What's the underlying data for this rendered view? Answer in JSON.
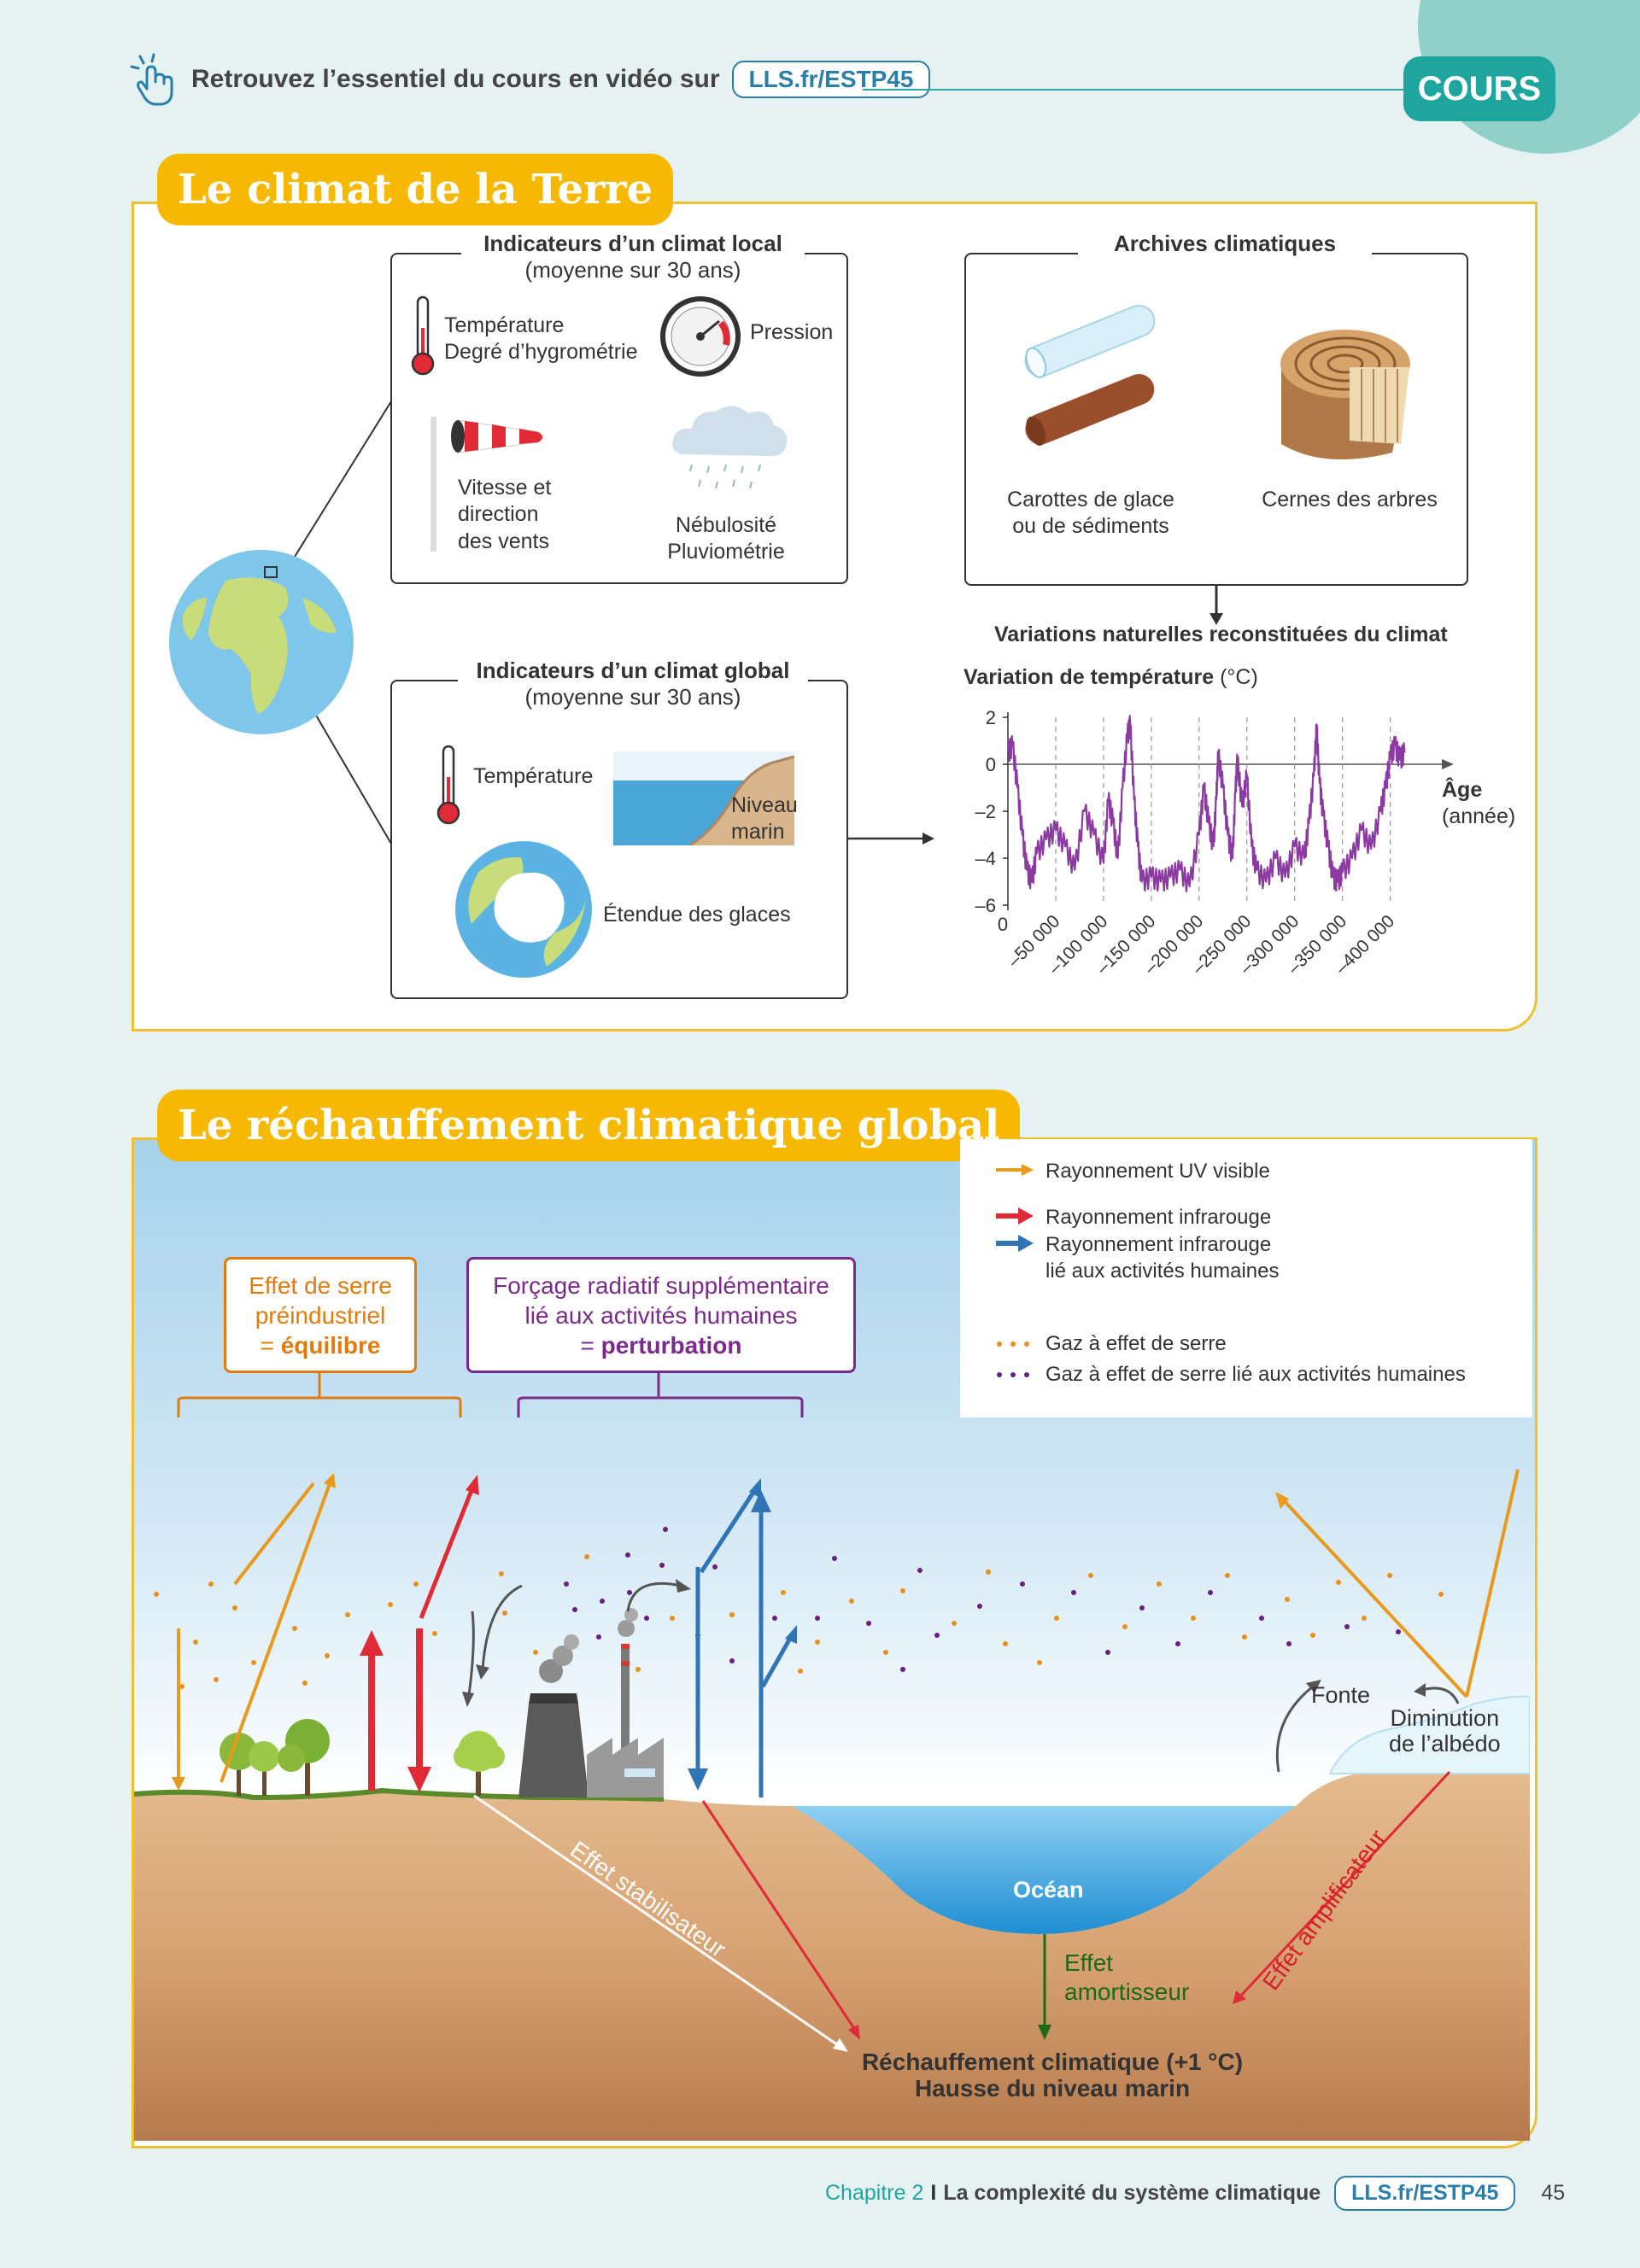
{
  "header": {
    "video_text": "Retrouvez l’essentiel du cours en vidéo sur",
    "link": "LLS.fr/ESTP45",
    "section_badge": "COURS"
  },
  "section1": {
    "title": "Le climat de la Terre",
    "local": {
      "title_line1": "Indicateurs d’un climat local",
      "title_line2": "(moyenne sur 30 ans)",
      "temp_line1": "Température",
      "temp_line2": "Degré d’hygrométrie",
      "pressure": "Pression",
      "wind_line1": "Vitesse et",
      "wind_line2": "direction",
      "wind_line3": "des vents",
      "cloud_line1": "Nébulosité",
      "cloud_line2": "Pluviométrie"
    },
    "global": {
      "title_line1": "Indicateurs d’un climat global",
      "title_line2": "(moyenne sur 30 ans)",
      "temperature": "Température",
      "sea_line1": "Niveau",
      "sea_line2": "marin",
      "ice": "Étendue des glaces"
    },
    "archives": {
      "title": "Archives climatiques",
      "cores_line1": "Carottes de glace",
      "cores_line2": "ou de sédiments",
      "rings": "Cernes des arbres"
    },
    "variations_title": "Variations naturelles reconstituées du climat",
    "chart_data": {
      "type": "line",
      "title": "Variation de température",
      "ylabel": "Variation de température (°C)",
      "ylabel_bold": "Variation de température",
      "ylabel_unit": "(°C)",
      "xlabel_line1": "Âge",
      "xlabel_line2": "(année)",
      "ylim": [
        -6,
        2
      ],
      "xlim": [
        0,
        -420000
      ],
      "y_ticks": [
        "2",
        "0",
        "–2",
        "–4",
        "–6"
      ],
      "x_ticks": [
        "0",
        "–50 000",
        "–100 000",
        "–150 000",
        "–200 000",
        "–250 000",
        "–300 000",
        "–350 000",
        "–400 000"
      ],
      "series": [
        {
          "name": "",
          "color": "#8a3aa0",
          "x": [
            0,
            -5000,
            -10000,
            -15000,
            -20000,
            -25000,
            -30000,
            -40000,
            -50000,
            -60000,
            -70000,
            -80000,
            -90000,
            -100000,
            -105000,
            -110000,
            -115000,
            -120000,
            -125000,
            -128000,
            -132000,
            -136000,
            -140000,
            -150000,
            -160000,
            -170000,
            -180000,
            -190000,
            -200000,
            -205000,
            -210000,
            -215000,
            -218000,
            -220000,
            -225000,
            -230000,
            -235000,
            -238000,
            -240000,
            -245000,
            -250000,
            -255000,
            -260000,
            -270000,
            -280000,
            -290000,
            -300000,
            -310000,
            -315000,
            -320000,
            -323000,
            -326000,
            -330000,
            -335000,
            -340000,
            -345000,
            -350000,
            -360000,
            -370000,
            -380000,
            -390000,
            -395000,
            -400000,
            -405000,
            -410000,
            -415000
          ],
          "y": [
            0.5,
            0.8,
            -1.0,
            -3.0,
            -4.5,
            -5.0,
            -3.8,
            -3.2,
            -2.8,
            -3.5,
            -4.5,
            -2.0,
            -3.0,
            -4.2,
            -1.5,
            -2.5,
            -4.0,
            -1.0,
            1.2,
            1.7,
            -1.5,
            -3.5,
            -5.0,
            -4.8,
            -5.0,
            -4.8,
            -4.5,
            -5.2,
            -3.0,
            -1.0,
            -2.5,
            -3.5,
            -1.5,
            0.4,
            -1.0,
            -3.0,
            -4.0,
            -1.2,
            0.2,
            -1.8,
            -0.5,
            -3.5,
            -4.5,
            -5.0,
            -4.0,
            -4.8,
            -3.5,
            -4.0,
            -2.5,
            -0.5,
            1.6,
            -0.8,
            -2.2,
            -3.5,
            -4.8,
            -5.0,
            -4.6,
            -4.0,
            -2.8,
            -3.6,
            -2.0,
            -1.0,
            0.3,
            0.8,
            0.2,
            0.5
          ]
        }
      ]
    }
  },
  "section2": {
    "title": "Le réchauffement climatique global",
    "preindustrial": {
      "line1": "Effet de serre",
      "line2": "préindustriel",
      "line3_prefix": "= ",
      "line3_bold": "équilibre"
    },
    "forcing": {
      "line1": "Forçage radiatif supplémentaire",
      "line2": "lié aux activités humaines",
      "line3_prefix": "= ",
      "line3_bold": "perturbation"
    },
    "legend": {
      "uv": "Rayonnement UV visible",
      "ir": "Rayonnement infrarouge",
      "ir_human_line1": "Rayonnement infrarouge",
      "ir_human_line2": "lié aux activités humaines",
      "ghg": "Gaz à effet de serre",
      "ghg_human": "Gaz à effet de serre lié aux activités humaines"
    },
    "labels": {
      "fonte": "Fonte",
      "albedo_line1": "Diminution",
      "albedo_line2": "de l’albédo",
      "ocean": "Océan",
      "stabilisateur": "Effet stabilisateur",
      "amplificateur": "Effet amplificateur",
      "amortisseur_line1": "Effet",
      "amortisseur_line2": "amortisseur",
      "warming_line1": "Réchauffement climatique (+1 °C)",
      "warming_line2": "Hausse du niveau marin"
    },
    "colors": {
      "uv": "#e89a1c",
      "ir": "#e02a36",
      "ir_human": "#2f74b5",
      "ghg": "#e8901c",
      "ghg_human": "#6a1e7e",
      "forcing": "#7a2a8a",
      "preindustrial": "#e07b10"
    }
  },
  "footer": {
    "chapter": "Chapitre 2",
    "separator": "I",
    "title": "La complexité du système climatique",
    "link": "LLS.fr/ESTP45",
    "page": "45"
  }
}
